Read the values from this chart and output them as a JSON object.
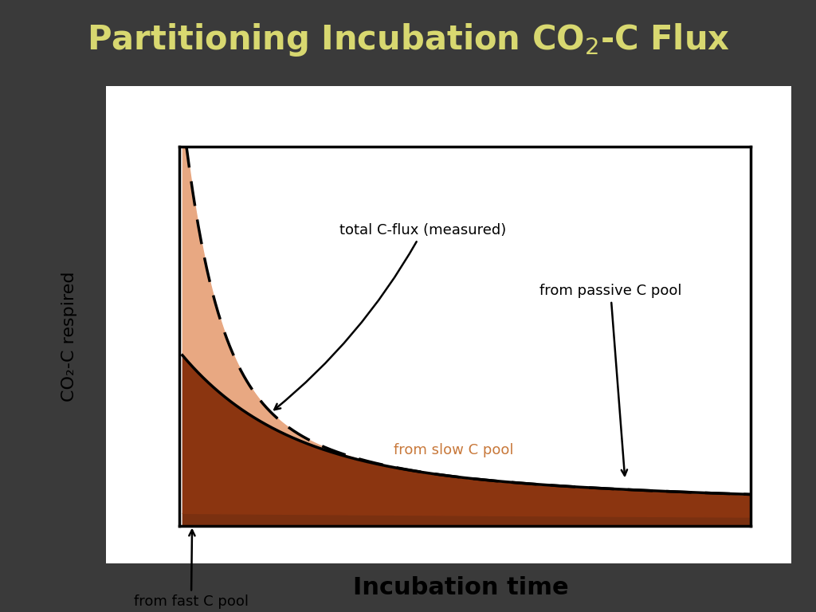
{
  "title_part1": "Partitioning Incubation CO",
  "title_sub": "2",
  "title_part2": "-C Flux",
  "title_color": "#d8d870",
  "background_color": "#3a3a3a",
  "plot_bg_color": "#ffffff",
  "ylabel": "CO₂-C respired",
  "xlabel": "Incubation time",
  "color_fast": "#e8a882",
  "color_slow": "#8b3510",
  "color_passive": "#7a3010",
  "annotation_total": "total C-flux (measured)",
  "annotation_fast": "from fast C pool",
  "annotation_slow": "from slow C pool",
  "annotation_passive": "from passive C pool",
  "xmin": 0.0,
  "xmax": 10.0,
  "ymin": 0.0,
  "ymax": 10.0
}
